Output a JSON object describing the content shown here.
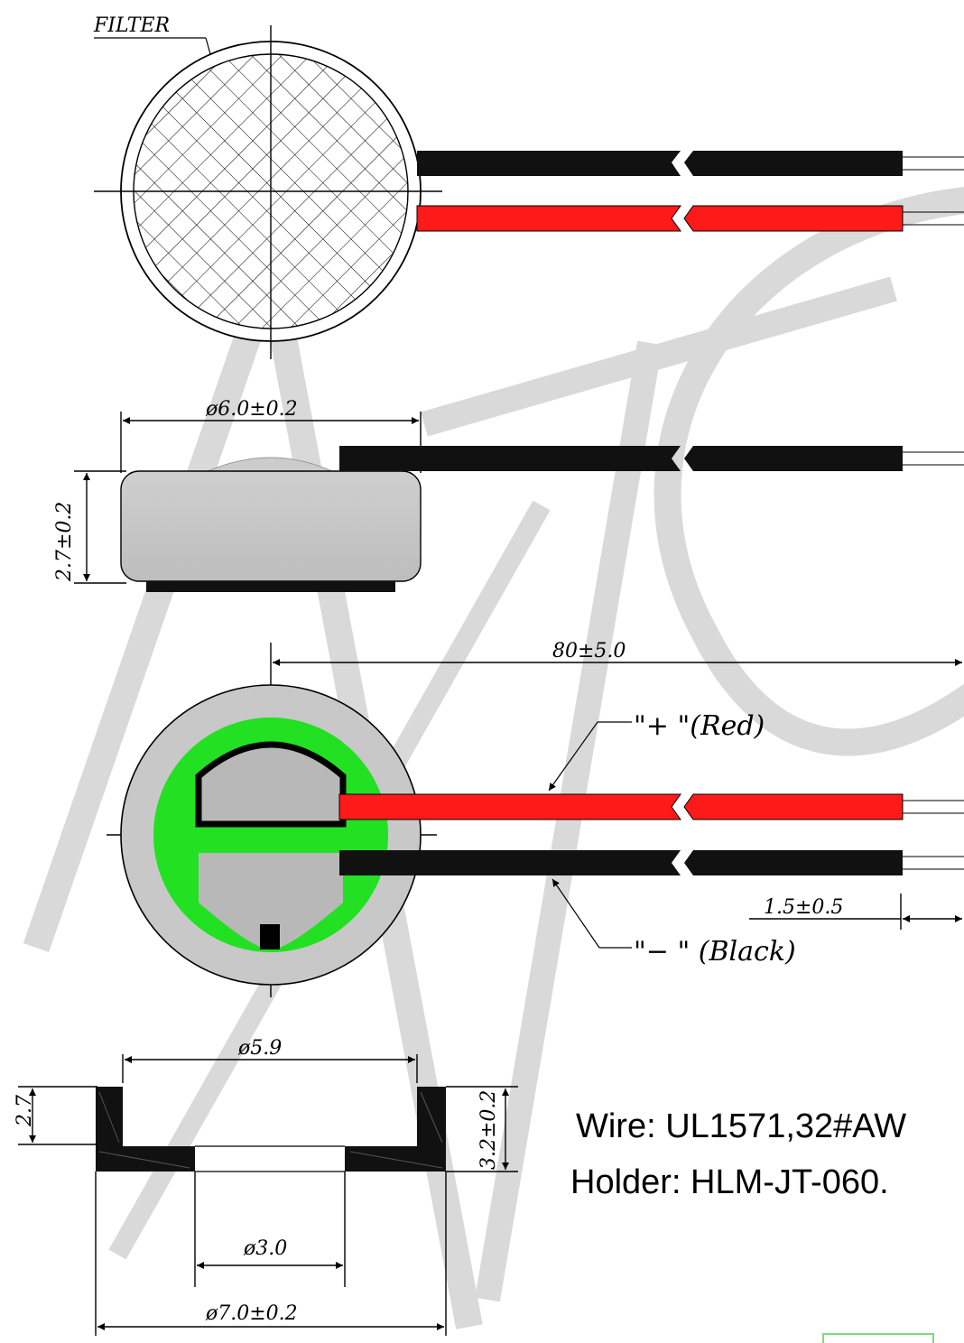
{
  "labels": {
    "filter": "FILTER",
    "diameter_body": "ø6.0±0.2",
    "height_body": "2.7±0.2",
    "length_wire": "80±5.0",
    "positive_lead": "\"+ \"(Red)",
    "negative_lead": "\"− \"  (Black)",
    "strip_length": "1.5±0.5",
    "holder_inner_diameter": "ø5.9",
    "holder_inner_height": "2.7",
    "holder_outer_height": "3.2±0.2",
    "holder_hole_diameter": "ø3.0",
    "holder_outer_diameter": "ø7.0±0.2"
  },
  "specs": {
    "wire": "Wire: UL1571,32#AW",
    "holder": "Holder: HLM-JT-060."
  },
  "colors": {
    "red_wire": "#ff1a1a",
    "black_wire": "#111111",
    "pcb_green": "#22e022",
    "body_gray": "#c8c8c8",
    "watermark": "#d9d9d9"
  }
}
